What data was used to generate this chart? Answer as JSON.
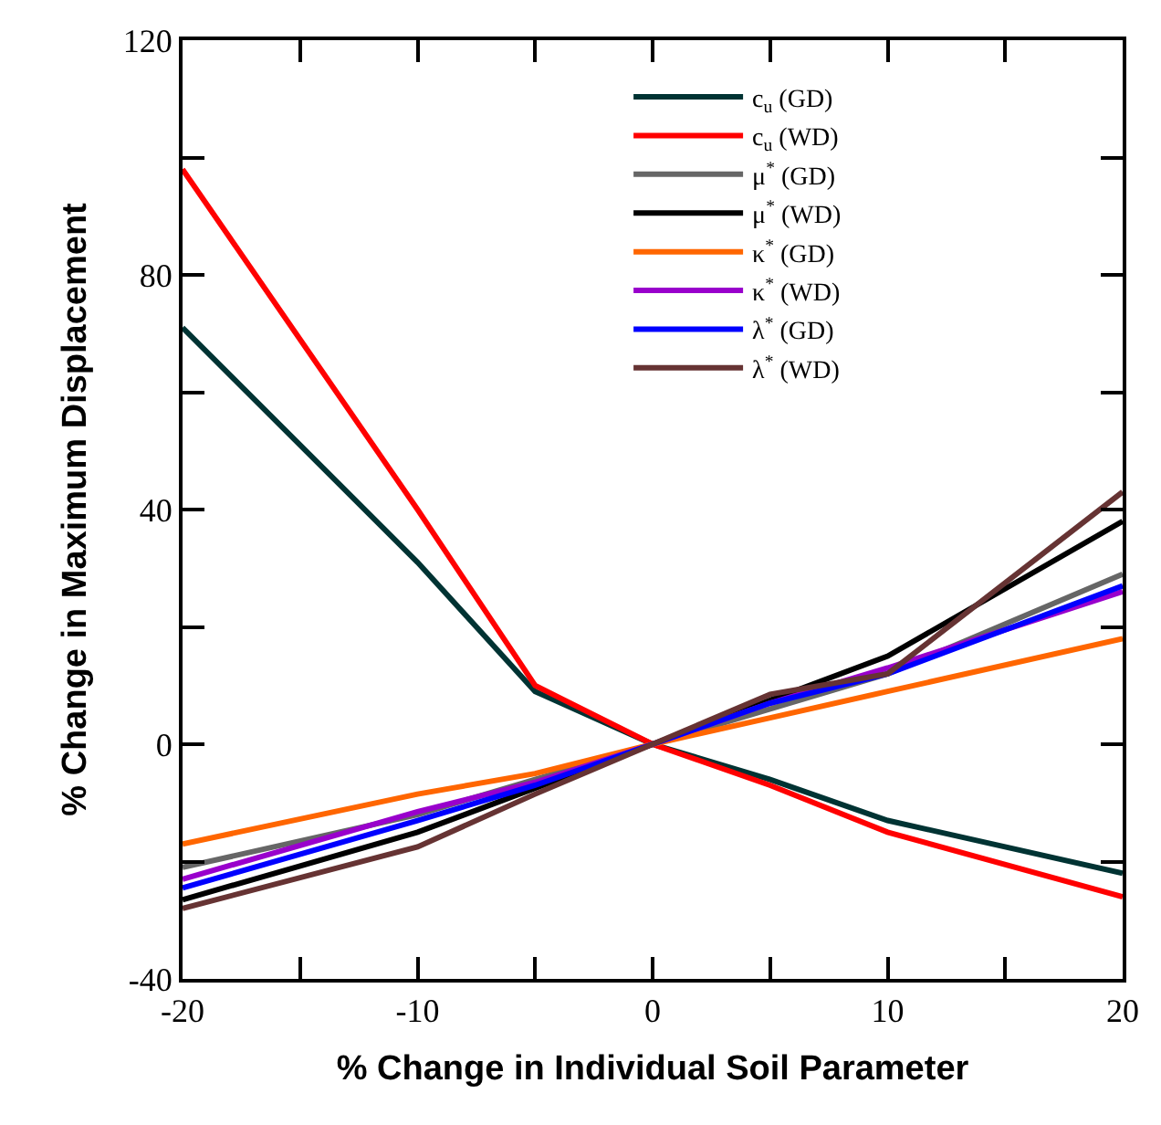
{
  "chart_data": {
    "type": "line",
    "xlabel": "% Change in Individual Soil Parameter",
    "ylabel": "% Change in Maximum Displacement",
    "x": [
      -20,
      -10,
      -5,
      0,
      5,
      10,
      20
    ],
    "xlim": [
      -20,
      20
    ],
    "ylim": [
      -40,
      120
    ],
    "xticks": [
      -20,
      {
        "value": -15,
        "label": null
      },
      -10,
      {
        "value": -5,
        "label": null
      },
      0,
      {
        "value": 5,
        "label": null
      },
      10,
      {
        "value": 15,
        "label": null
      },
      20
    ],
    "yticks": [
      -40,
      {
        "value": -20,
        "label": null
      },
      0,
      {
        "value": 20,
        "label": null
      },
      40,
      {
        "value": 60,
        "label": null
      },
      80,
      {
        "value": 100,
        "label": null
      },
      120
    ],
    "legend": "top",
    "marker": "none",
    "line_style": "solid",
    "series": [
      {
        "name": "c$_{u}$ (GD)",
        "color": "#003333",
        "values": [
          71,
          31,
          9,
          0,
          -6,
          -13,
          -22
        ]
      },
      {
        "name": "c$_{u}$ (WD)",
        "color": "#ff0000",
        "values": [
          98,
          40,
          10,
          0,
          -7,
          -15,
          -26
        ]
      },
      {
        "name": "μ$^{*}$ (GD)",
        "color": "#666666",
        "values": [
          -21,
          -12,
          -6,
          0,
          6,
          12,
          29
        ]
      },
      {
        "name": "μ$^{*}$ (WD)",
        "color": "#000000",
        "values": [
          -26.5,
          -15,
          -7.5,
          0,
          7.5,
          15,
          38
        ]
      },
      {
        "name": "κ$^{*}$ (GD)",
        "color": "#ff6600",
        "values": [
          -17,
          -8.5,
          -5,
          0,
          4.5,
          9,
          18
        ]
      },
      {
        "name": "κ$^{*}$ (WD)",
        "color": "#9900cc",
        "values": [
          -23,
          -11.5,
          -6.5,
          0,
          7,
          13,
          26
        ]
      },
      {
        "name": "λ$^{*}$ (GD)",
        "color": "#0000ff",
        "values": [
          -24.5,
          -13,
          -7,
          0,
          7,
          12,
          27
        ]
      },
      {
        "name": "λ$^{*}$ (WD)",
        "color": "#663333",
        "values": [
          -28,
          -17.5,
          -8.5,
          0,
          8.5,
          12,
          43
        ]
      }
    ]
  }
}
